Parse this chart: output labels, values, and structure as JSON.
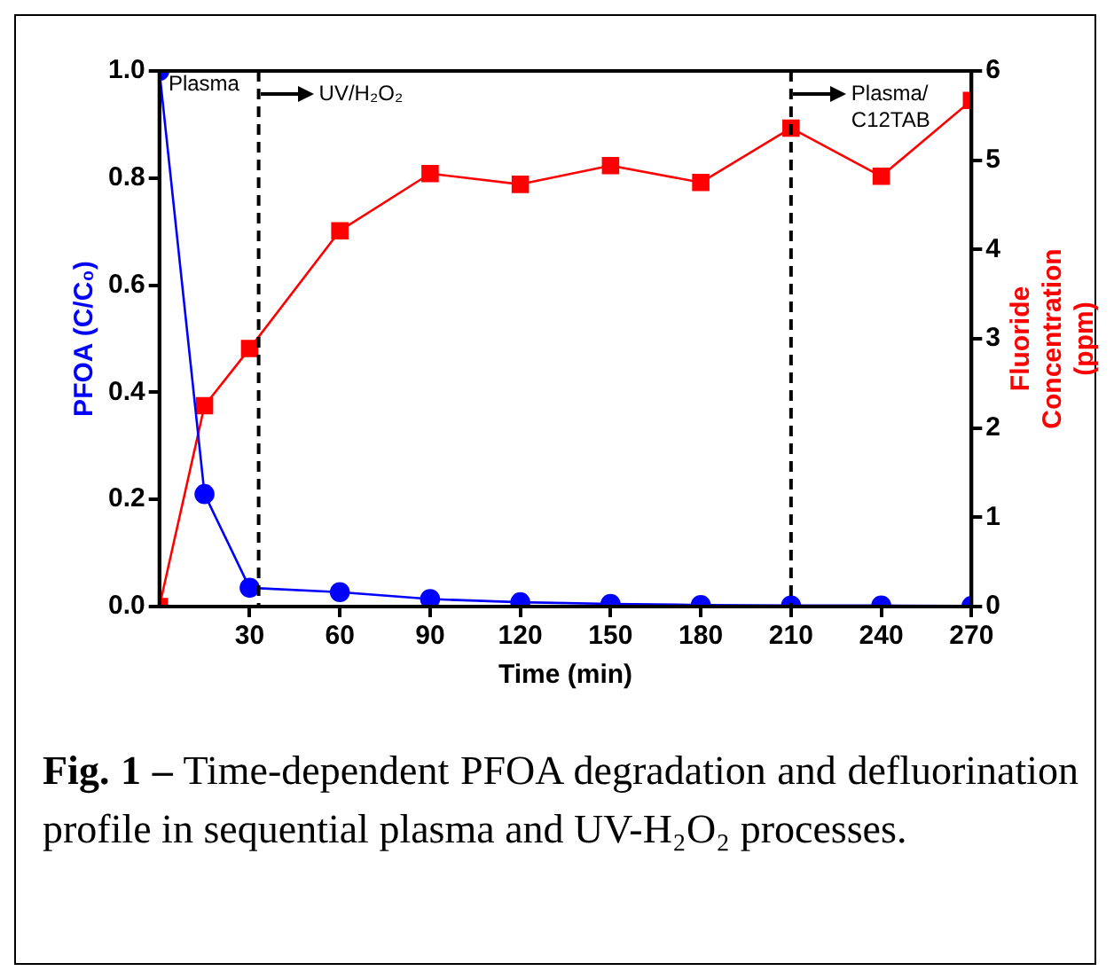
{
  "chart_data": {
    "type": "line",
    "x": [
      0,
      15,
      30,
      60,
      90,
      120,
      150,
      180,
      210,
      240,
      270
    ],
    "series": [
      {
        "color": "#0000ff",
        "marker": "circle",
        "values": [
          1.0,
          0.21,
          0.035,
          0.027,
          0.014,
          0.008,
          0.005,
          0.003,
          0.002,
          0.002,
          0.001
        ]
      },
      {
        "color": "#ff0000",
        "marker": "square",
        "axis": "y2",
        "values": [
          0,
          2.25,
          2.89,
          4.21,
          4.85,
          4.73,
          4.94,
          4.75,
          5.36,
          4.82,
          5.67
        ]
      }
    ],
    "xlabel": "Time (min)",
    "ylabel": "PFOA (C/C₀)",
    "y2label": "Fluoride\nConcentration\n(ppm)",
    "xlim": [
      0,
      270
    ],
    "xticks": [
      30,
      60,
      90,
      120,
      150,
      180,
      210,
      240,
      270
    ],
    "ylim": [
      0,
      1
    ],
    "yticks": [
      {
        "value": 0,
        "label": "0.0"
      },
      0.2,
      0.4,
      0.6,
      0.8,
      {
        "value": 1,
        "label": "1.0"
      }
    ],
    "y2lim": [
      0,
      6
    ],
    "y2ticks": [
      0,
      1,
      2,
      3,
      4,
      5,
      6
    ],
    "ref_lines": [
      {
        "axis": "x",
        "value": 33,
        "color": "#000000",
        "line_style": "dashed",
        "label": "UV/H₂O₂"
      },
      {
        "axis": "x",
        "value": 210,
        "color": "#000000",
        "line_style": "dashed",
        "label": "Plasma/\nC12TAB"
      }
    ],
    "annotations": [
      {
        "text": "Plasma",
        "x": 3,
        "y": 0.975
      },
      "Fig. 1 –",
      "Time-dependent PFOA degradation and defluorination profile in sequential plasma and UV-H₂O₂ processes."
    ],
    "grid": false,
    "legend": false
  }
}
